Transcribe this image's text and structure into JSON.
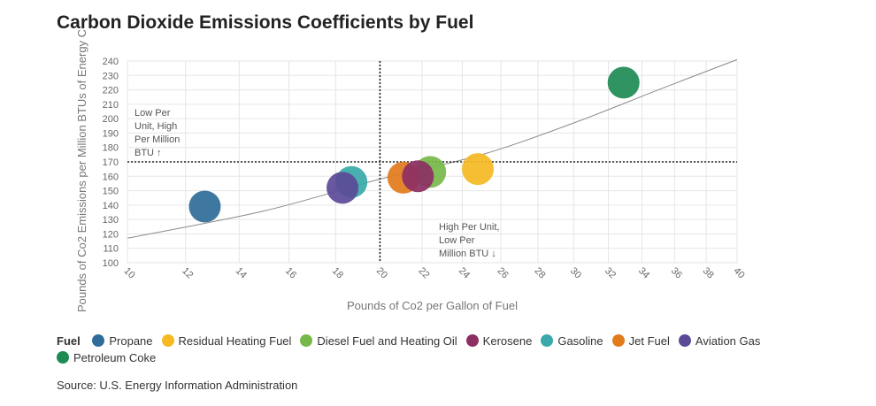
{
  "title": "Carbon Dioxide Emissions Coefficients by Fuel",
  "source": "Source: U.S. Energy Information Administration",
  "legend_title": "Fuel",
  "chart_data": {
    "type": "scatter",
    "title": "Carbon Dioxide Emissions Coefficients by Fuel",
    "xlabel": "Pounds of Co2 per Gallon of Fuel",
    "ylabel": "Pounds of Co2 Emissions per Million BTUs of Energy C",
    "x_scale": "sqrt",
    "xlim": [
      10,
      40
    ],
    "ylim": [
      100,
      240
    ],
    "x_ticks": [
      10,
      12,
      14,
      16,
      18,
      20,
      22,
      24,
      26,
      28,
      30,
      32,
      34,
      36,
      38,
      40
    ],
    "y_ticks": [
      100,
      110,
      120,
      130,
      140,
      150,
      160,
      170,
      180,
      190,
      200,
      210,
      220,
      230,
      240
    ],
    "grid": true,
    "legend_position": "bottom",
    "reference_lines": {
      "x": 20,
      "y": 170
    },
    "annotations": [
      {
        "lines": [
          "Low Per",
          "Unit, High",
          "Per Million",
          "BTU ↑"
        ]
      },
      {
        "lines": [
          "High Per Unit,",
          "Low Per",
          "Million BTU ↓"
        ]
      }
    ],
    "trend_line": [
      [
        10,
        117
      ],
      [
        15,
        136
      ],
      [
        20,
        158
      ],
      [
        25,
        175
      ],
      [
        30,
        197
      ],
      [
        35,
        220
      ],
      [
        40,
        241
      ]
    ],
    "series": [
      {
        "name": "Propane",
        "color": "#2e6d99",
        "x": 12.7,
        "y": 139
      },
      {
        "name": "Residual Heating Fuel",
        "color": "#f5b921",
        "x": 24.8,
        "y": 165
      },
      {
        "name": "Diesel Fuel and Heating Oil",
        "color": "#77b84a",
        "x": 22.4,
        "y": 163
      },
      {
        "name": "Kerosene",
        "color": "#8c2f63",
        "x": 21.8,
        "y": 160
      },
      {
        "name": "Gasoline",
        "color": "#3aa9a9",
        "x": 18.7,
        "y": 156
      },
      {
        "name": "Jet Fuel",
        "color": "#e27b1c",
        "x": 21.1,
        "y": 159
      },
      {
        "name": "Aviation Gas",
        "color": "#5b4a97",
        "x": 18.3,
        "y": 152
      },
      {
        "name": "Petroleum Coke",
        "color": "#1e8b55",
        "x": 32.9,
        "y": 225
      }
    ]
  }
}
